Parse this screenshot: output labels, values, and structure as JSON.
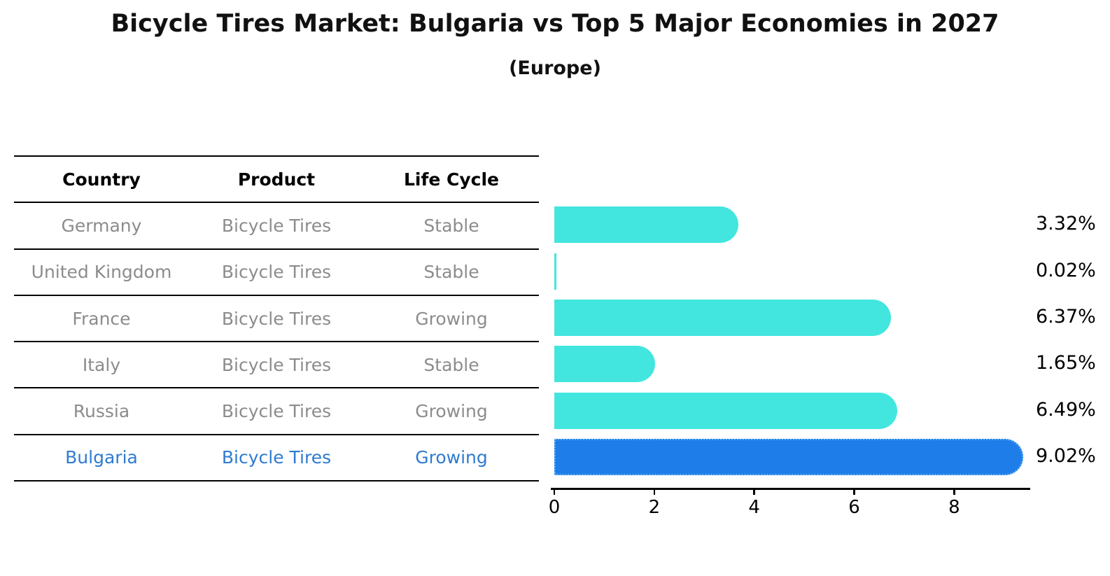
{
  "title": "Bicycle Tires Market: Bulgaria vs Top 5 Major Economies in 2027",
  "subtitle": "(Europe)",
  "table": {
    "headers": [
      "Country",
      "Product",
      "Life Cycle"
    ],
    "rows": [
      {
        "country": "Germany",
        "product": "Bicycle Tires",
        "life_cycle": "Stable",
        "highlighted": false
      },
      {
        "country": "United Kingdom",
        "product": "Bicycle Tires",
        "life_cycle": "Stable",
        "highlighted": false
      },
      {
        "country": "France",
        "product": "Bicycle Tires",
        "life_cycle": "Growing",
        "highlighted": false
      },
      {
        "country": "Italy",
        "product": "Bicycle Tires",
        "life_cycle": "Stable",
        "highlighted": false
      },
      {
        "country": "Russia",
        "product": "Bicycle Tires",
        "life_cycle": "Growing",
        "highlighted": false
      },
      {
        "country": "Bulgaria",
        "product": "Bicycle Tires",
        "life_cycle": "Growing",
        "highlighted": true
      }
    ]
  },
  "chart_data": {
    "type": "bar",
    "orientation": "horizontal",
    "title": "Bicycle Tires Market: Bulgaria vs Top 5 Major Economies in 2027",
    "subtitle": "(Europe)",
    "categories": [
      "Germany",
      "United Kingdom",
      "France",
      "Italy",
      "Russia",
      "Bulgaria"
    ],
    "values": [
      3.32,
      0.02,
      6.37,
      1.65,
      6.49,
      9.02
    ],
    "value_labels": [
      "3.32%",
      "0.02%",
      "6.37%",
      "1.65%",
      "6.49%",
      "9.02%"
    ],
    "x_ticks": [
      0,
      2,
      4,
      6,
      8
    ],
    "xlim": [
      0,
      9.52
    ],
    "grid": false,
    "legend": "none",
    "highlight_index": 5,
    "colors": {
      "bar": "#42e6de",
      "highlight_bar": "#1e7de8",
      "highlight_border": "#5fb0f2",
      "highlight_text": "#2f7bd0",
      "row_text": "#8c8c8c",
      "header_text": "#000000",
      "axis": "#000000"
    }
  }
}
